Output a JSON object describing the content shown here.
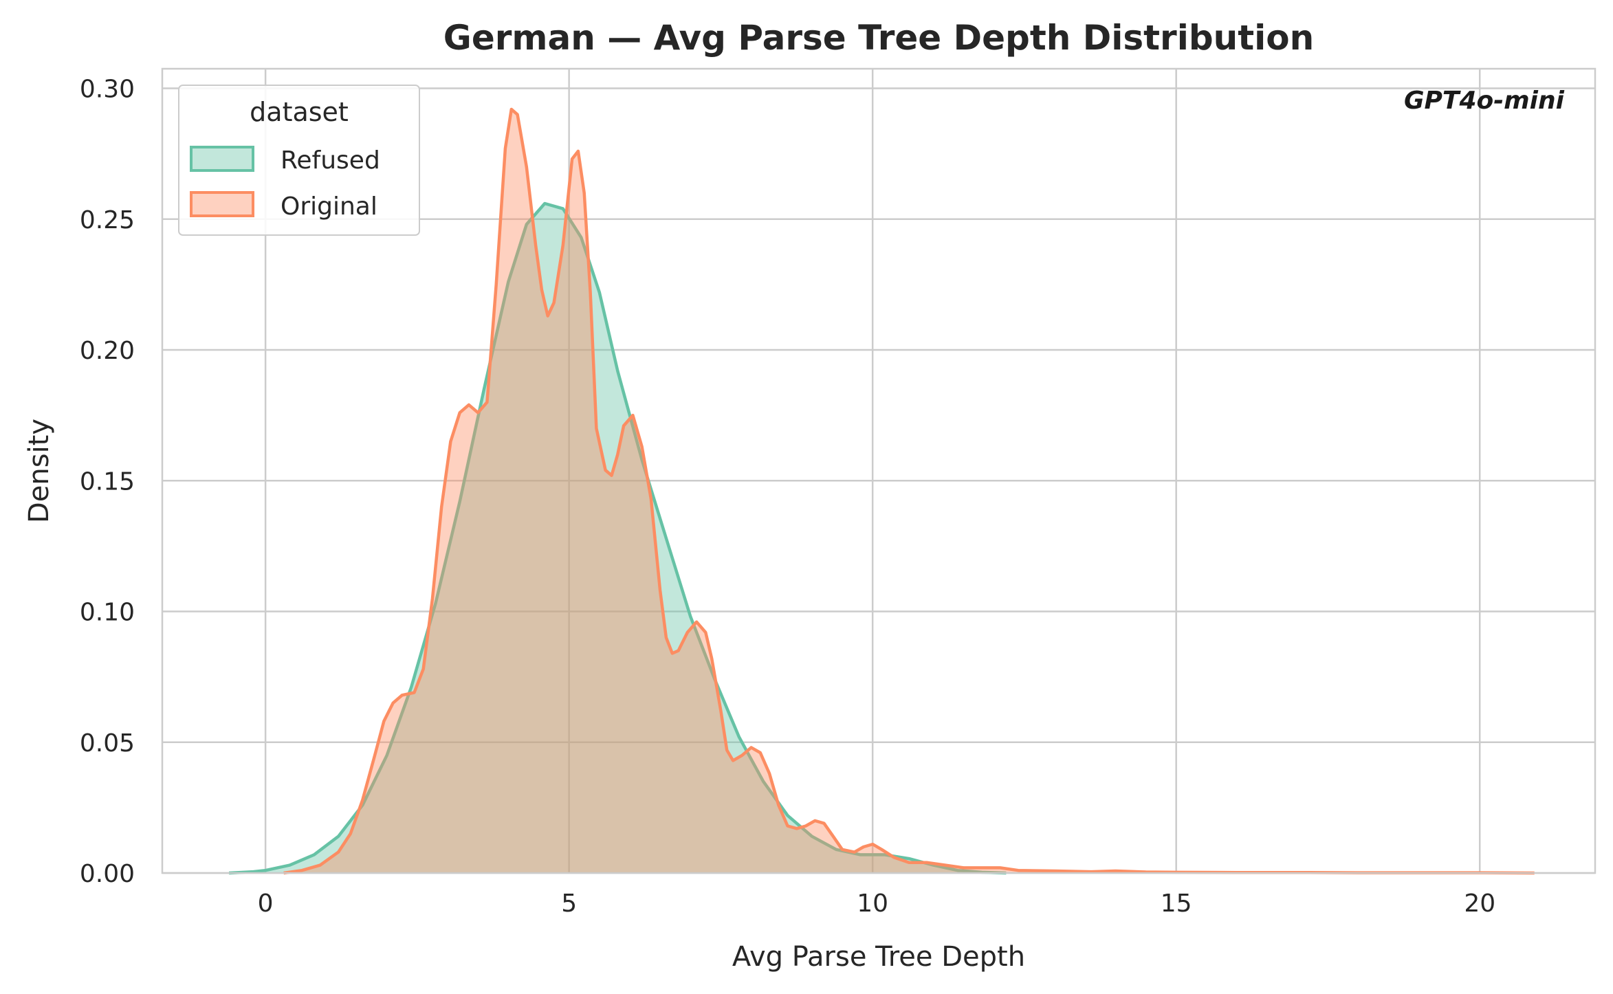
{
  "chart_data": {
    "type": "area",
    "title": "German — Avg Parse Tree Depth Distribution",
    "xlabel": "Avg Parse Tree Depth",
    "ylabel": "Density",
    "annotation": "GPT4o-mini",
    "xlim": [
      -1.7,
      21.9
    ],
    "ylim": [
      0,
      0.3075
    ],
    "xticks": [
      0,
      5,
      10,
      15,
      20
    ],
    "xtick_labels": [
      "0",
      "5",
      "10",
      "15",
      "20"
    ],
    "yticks": [
      0,
      0.05,
      0.1,
      0.15,
      0.2,
      0.25,
      0.3
    ],
    "ytick_labels": [
      "0.00",
      "0.05",
      "0.10",
      "0.15",
      "0.20",
      "0.25",
      "0.30"
    ],
    "grid": true,
    "legend": {
      "title": "dataset",
      "position": "top-left"
    },
    "series": [
      {
        "name": "Refused",
        "color": "#66c2a5",
        "points": [
          [
            -0.6,
            0.0
          ],
          [
            -0.2,
            0.0005
          ],
          [
            0.0,
            0.001
          ],
          [
            0.4,
            0.003
          ],
          [
            0.8,
            0.007
          ],
          [
            1.2,
            0.014
          ],
          [
            1.6,
            0.026
          ],
          [
            2.0,
            0.045
          ],
          [
            2.4,
            0.071
          ],
          [
            2.8,
            0.103
          ],
          [
            3.2,
            0.142
          ],
          [
            3.6,
            0.185
          ],
          [
            4.0,
            0.226
          ],
          [
            4.3,
            0.248
          ],
          [
            4.6,
            0.256
          ],
          [
            4.9,
            0.254
          ],
          [
            5.2,
            0.243
          ],
          [
            5.5,
            0.222
          ],
          [
            5.8,
            0.192
          ],
          [
            6.2,
            0.158
          ],
          [
            6.6,
            0.128
          ],
          [
            7.0,
            0.098
          ],
          [
            7.4,
            0.074
          ],
          [
            7.8,
            0.052
          ],
          [
            8.2,
            0.035
          ],
          [
            8.6,
            0.022
          ],
          [
            9.0,
            0.014
          ],
          [
            9.4,
            0.009
          ],
          [
            9.8,
            0.007
          ],
          [
            10.2,
            0.007
          ],
          [
            10.6,
            0.0055
          ],
          [
            11.0,
            0.003
          ],
          [
            11.4,
            0.001
          ],
          [
            11.8,
            0.0003
          ],
          [
            12.2,
            0.0
          ]
        ]
      },
      {
        "name": "Original",
        "color": "#fc8d62",
        "points": [
          [
            0.3,
            0.0
          ],
          [
            0.6,
            0.001
          ],
          [
            0.9,
            0.003
          ],
          [
            1.2,
            0.008
          ],
          [
            1.4,
            0.015
          ],
          [
            1.6,
            0.028
          ],
          [
            1.8,
            0.045
          ],
          [
            1.95,
            0.058
          ],
          [
            2.1,
            0.065
          ],
          [
            2.25,
            0.068
          ],
          [
            2.45,
            0.069
          ],
          [
            2.6,
            0.078
          ],
          [
            2.75,
            0.105
          ],
          [
            2.9,
            0.14
          ],
          [
            3.05,
            0.165
          ],
          [
            3.2,
            0.176
          ],
          [
            3.35,
            0.179
          ],
          [
            3.5,
            0.176
          ],
          [
            3.65,
            0.18
          ],
          [
            3.8,
            0.225
          ],
          [
            3.95,
            0.277
          ],
          [
            4.05,
            0.292
          ],
          [
            4.15,
            0.29
          ],
          [
            4.3,
            0.27
          ],
          [
            4.45,
            0.24
          ],
          [
            4.55,
            0.223
          ],
          [
            4.65,
            0.213
          ],
          [
            4.75,
            0.218
          ],
          [
            4.9,
            0.24
          ],
          [
            5.05,
            0.273
          ],
          [
            5.15,
            0.276
          ],
          [
            5.25,
            0.26
          ],
          [
            5.35,
            0.222
          ],
          [
            5.45,
            0.17
          ],
          [
            5.6,
            0.154
          ],
          [
            5.7,
            0.152
          ],
          [
            5.8,
            0.16
          ],
          [
            5.9,
            0.171
          ],
          [
            6.05,
            0.175
          ],
          [
            6.2,
            0.163
          ],
          [
            6.35,
            0.143
          ],
          [
            6.5,
            0.108
          ],
          [
            6.6,
            0.09
          ],
          [
            6.7,
            0.084
          ],
          [
            6.8,
            0.085
          ],
          [
            6.95,
            0.092
          ],
          [
            7.1,
            0.096
          ],
          [
            7.25,
            0.092
          ],
          [
            7.35,
            0.082
          ],
          [
            7.5,
            0.062
          ],
          [
            7.6,
            0.047
          ],
          [
            7.7,
            0.043
          ],
          [
            7.85,
            0.045
          ],
          [
            8.0,
            0.048
          ],
          [
            8.15,
            0.046
          ],
          [
            8.3,
            0.038
          ],
          [
            8.45,
            0.026
          ],
          [
            8.6,
            0.018
          ],
          [
            8.75,
            0.017
          ],
          [
            8.9,
            0.018
          ],
          [
            9.05,
            0.02
          ],
          [
            9.2,
            0.019
          ],
          [
            9.35,
            0.014
          ],
          [
            9.5,
            0.009
          ],
          [
            9.7,
            0.008
          ],
          [
            9.85,
            0.01
          ],
          [
            10.0,
            0.011
          ],
          [
            10.15,
            0.009
          ],
          [
            10.35,
            0.006
          ],
          [
            10.6,
            0.004
          ],
          [
            10.9,
            0.004
          ],
          [
            11.2,
            0.003
          ],
          [
            11.5,
            0.002
          ],
          [
            11.8,
            0.002
          ],
          [
            12.1,
            0.002
          ],
          [
            12.4,
            0.001
          ],
          [
            13.0,
            0.0008
          ],
          [
            13.6,
            0.0005
          ],
          [
            14.0,
            0.0008
          ],
          [
            14.5,
            0.0004
          ],
          [
            15.0,
            0.0003
          ],
          [
            16.0,
            0.0002
          ],
          [
            17.0,
            0.0002
          ],
          [
            18.0,
            0.0001
          ],
          [
            19.0,
            0.0001
          ],
          [
            20.0,
            0.0001
          ],
          [
            20.9,
            0.0
          ]
        ]
      }
    ]
  }
}
